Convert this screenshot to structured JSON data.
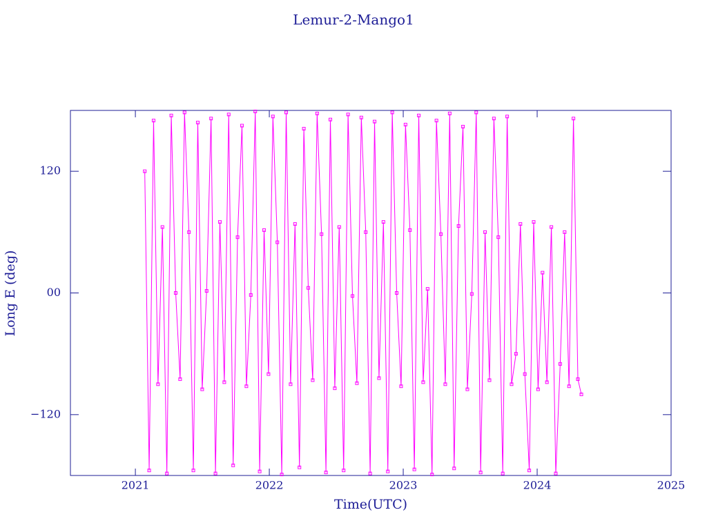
{
  "chart_data": {
    "type": "line",
    "title": "Lemur-2-Mango1",
    "xlabel": "Time(UTC)",
    "ylabel": "Long E (deg)",
    "xlim": [
      2020.515,
      2025
    ],
    "xticks": [
      2021,
      2022,
      2023,
      2024,
      2025
    ],
    "ylim": [
      -180,
      180
    ],
    "yticks": [
      {
        "value": -120,
        "label": "−120"
      },
      {
        "value": 0,
        "label": "00"
      },
      {
        "value": 120,
        "label": "120"
      }
    ],
    "axis_color": "#1c1c96",
    "x": [
      2021.07,
      2021.103,
      2021.136,
      2021.169,
      2021.202,
      2021.235,
      2021.268,
      2021.301,
      2021.334,
      2021.367,
      2021.4,
      2021.433,
      2021.466,
      2021.499,
      2021.532,
      2021.565,
      2021.598,
      2021.631,
      2021.664,
      2021.697,
      2021.73,
      2021.763,
      2021.796,
      2021.829,
      2021.862,
      2021.895,
      2021.928,
      2021.961,
      2021.994,
      2022.027,
      2022.06,
      2022.093,
      2022.126,
      2022.159,
      2022.192,
      2022.225,
      2022.258,
      2022.291,
      2022.324,
      2022.357,
      2022.39,
      2022.423,
      2022.456,
      2022.489,
      2022.522,
      2022.555,
      2022.588,
      2022.621,
      2022.654,
      2022.687,
      2022.72,
      2022.753,
      2022.786,
      2022.819,
      2022.852,
      2022.885,
      2022.918,
      2022.951,
      2022.984,
      2023.017,
      2023.05,
      2023.083,
      2023.116,
      2023.149,
      2023.182,
      2023.215,
      2023.248,
      2023.281,
      2023.314,
      2023.347,
      2023.38,
      2023.413,
      2023.446,
      2023.479,
      2023.512,
      2023.545,
      2023.578,
      2023.611,
      2023.644,
      2023.677,
      2023.71,
      2023.743,
      2023.776,
      2023.809,
      2023.842,
      2023.875,
      2023.908,
      2023.941,
      2023.974,
      2024.007,
      2024.04,
      2024.073,
      2024.106,
      2024.139,
      2024.172,
      2024.205,
      2024.238,
      2024.271,
      2024.304,
      2024.33
    ],
    "series": [
      {
        "color": "#ff00ff",
        "values": [
          120,
          -175,
          170,
          -90,
          65,
          -178,
          175,
          0,
          -85,
          178,
          60,
          -175,
          168,
          -95,
          2,
          172,
          -178,
          70,
          -88,
          176,
          -170,
          55,
          165,
          -92,
          -2,
          179,
          -176,
          62,
          -80,
          174,
          50,
          -179,
          178,
          -90,
          68,
          -172,
          162,
          5,
          -86,
          177,
          58,
          -177,
          171,
          -94,
          65,
          -175,
          176,
          -3,
          -89,
          173,
          60,
          -178,
          169,
          -84,
          70,
          -176,
          178,
          0,
          -92,
          166,
          62,
          -174,
          175,
          -88,
          4,
          -179,
          170,
          58,
          -90,
          177,
          -173,
          66,
          164,
          -95,
          -1,
          178,
          -177,
          60,
          -86,
          172,
          55,
          -178,
          174,
          -90,
          -60,
          68,
          -80,
          -175,
          70,
          -95,
          20,
          -88,
          65,
          -178,
          -70,
          60,
          -92,
          172,
          -85,
          -100
        ]
      }
    ]
  }
}
